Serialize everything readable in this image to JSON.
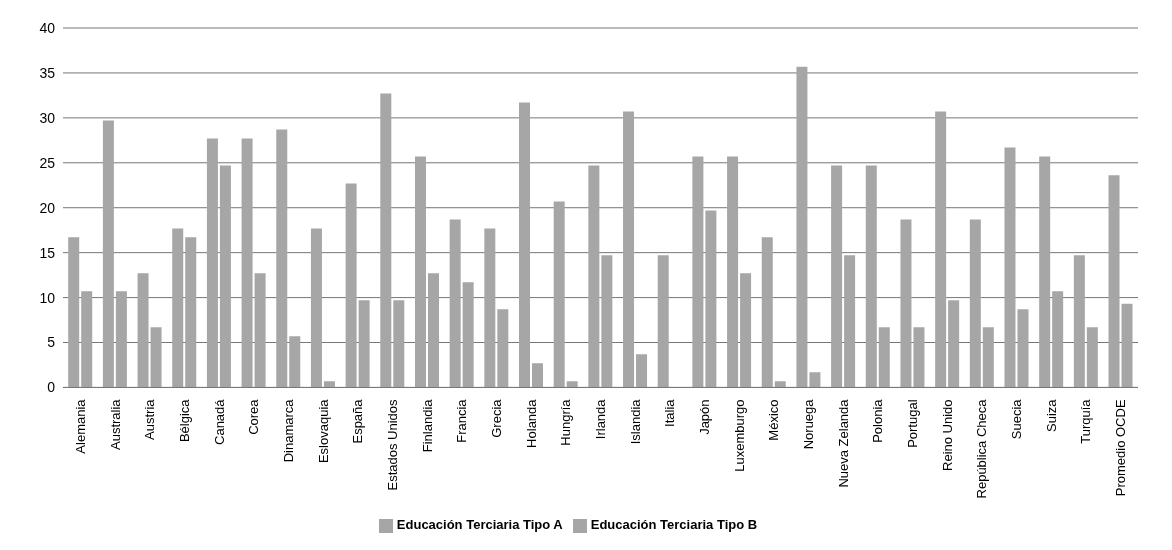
{
  "chart_data": {
    "type": "bar",
    "categories": [
      "Alemania",
      "Australia",
      "Austria",
      "Bélgica",
      "Canadá",
      "Corea",
      "Dinamarca",
      "Eslovaquia",
      "España",
      "Estados Unidos",
      "Finlandia",
      "Francia",
      "Grecia",
      "Holanda",
      "Hungría",
      "Irlanda",
      "Islandia",
      "Italia",
      "Japón",
      "Luxemburgo",
      "México",
      "Noruega",
      "Nueva Zelanda",
      "Polonia",
      "Portugal",
      "Reino Unido",
      "República Checa",
      "Suecia",
      "Suiza",
      "Turquía",
      "Promedio OCDE"
    ],
    "series": [
      {
        "name": "Educación Terciaria Tipo A",
        "color": "#a6a6a6",
        "values": [
          16.7,
          29.7,
          12.7,
          17.7,
          27.7,
          27.7,
          28.7,
          17.7,
          22.7,
          32.7,
          25.7,
          18.7,
          17.7,
          31.7,
          20.7,
          24.7,
          30.7,
          14.7,
          25.7,
          25.7,
          16.7,
          35.7,
          24.7,
          24.7,
          18.7,
          30.7,
          18.7,
          26.7,
          25.7,
          14.7,
          23.6
        ]
      },
      {
        "name": "Educación Terciaria Tipo B",
        "color": "#a6a6a6",
        "values": [
          10.7,
          10.7,
          6.7,
          16.7,
          24.7,
          12.7,
          5.7,
          0.7,
          9.7,
          9.7,
          12.7,
          11.7,
          8.7,
          2.7,
          0.7,
          14.7,
          3.7,
          null,
          19.7,
          12.7,
          0.7,
          1.7,
          14.7,
          6.7,
          6.7,
          9.7,
          6.7,
          8.7,
          10.7,
          6.7,
          9.3
        ]
      }
    ],
    "ylim": [
      0,
      40
    ],
    "yticks": [
      0,
      5,
      10,
      15,
      20,
      25,
      30,
      35,
      40
    ],
    "grid": "y",
    "legend": "bottom"
  }
}
